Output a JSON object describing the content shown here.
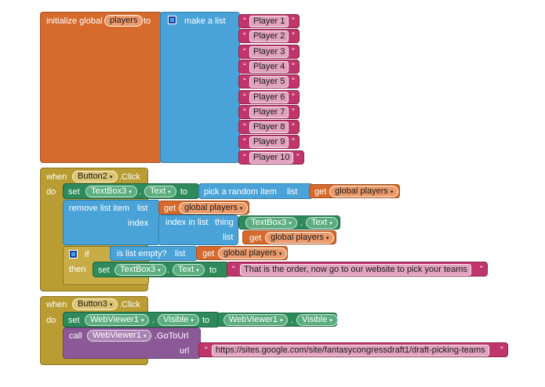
{
  "init": {
    "keyword": "initialize global",
    "var": "players",
    "to": "to",
    "make_list": "make a list",
    "items": [
      "Player 1",
      "Player 2",
      "Player 3",
      "Player 4",
      "Player 5",
      "Player 6",
      "Player 7",
      "Player 8",
      "Player 9",
      "Player 10"
    ]
  },
  "ev2": {
    "when": "when",
    "component": "Button2",
    "event": ".Click",
    "do": "do",
    "set": "set",
    "set_comp": "TextBox3",
    "dot": ".",
    "prop": "Text",
    "to": "to",
    "pick": "pick a random item",
    "list": "list",
    "get": "get",
    "global_players": "global players",
    "remove": "remove list item",
    "index": "index",
    "index_in_list": "index in list",
    "thing": "thing",
    "if": "if",
    "is_empty": "is list empty?",
    "then": "then",
    "message": "That is the order, now go to our website to pick your teams"
  },
  "ev3": {
    "when": "when",
    "component": "Button3",
    "event": ".Click",
    "do": "do",
    "set": "set",
    "set_comp": "WebViewer1",
    "prop": "Visible",
    "to": "to",
    "call": "call",
    "call_comp": "WebViewer1",
    "method": ".GoToUrl",
    "url_label": "url",
    "url": "https://sites.google.com/site/fantasycongressdraft1/draft-picking-teams"
  },
  "colors": {
    "variables": "#d56a2c",
    "lists": "#4aa3d8",
    "text": "#c0356c",
    "events": "#b99c32",
    "components": "#2e8a5a",
    "methods": "#8b5a96"
  }
}
